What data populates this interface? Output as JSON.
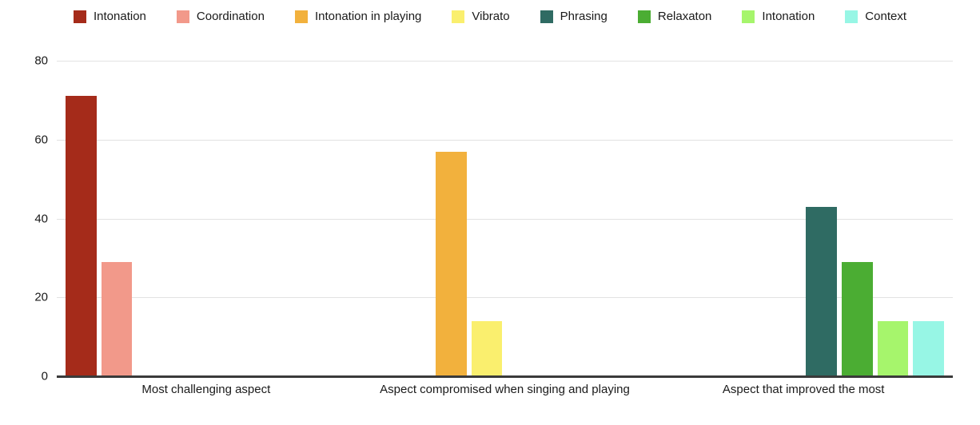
{
  "chart_data": {
    "type": "bar",
    "title": "",
    "xlabel": "",
    "ylabel": "",
    "categories": [
      "Most challenging aspect",
      "Aspect compromised when singing and playing",
      "Aspect that improved the most"
    ],
    "series": [
      {
        "name": "Intonation",
        "color": "#A52B1A",
        "values": [
          71,
          0,
          0
        ]
      },
      {
        "name": "Coordination",
        "color": "#F2998A",
        "values": [
          29,
          0,
          0
        ]
      },
      {
        "name": "Intonation in playing",
        "color": "#F2B13D",
        "values": [
          0,
          57,
          0
        ]
      },
      {
        "name": "Vibrato",
        "color": "#FAEF6E",
        "values": [
          0,
          14,
          0
        ]
      },
      {
        "name": "Phrasing",
        "color": "#2F6B63",
        "values": [
          0,
          0,
          43
        ]
      },
      {
        "name": "Relaxaton",
        "color": "#4BAD33",
        "values": [
          0,
          0,
          29
        ]
      },
      {
        "name": "Intonation",
        "color": "#A6F56C",
        "values": [
          0,
          0,
          14
        ]
      },
      {
        "name": "Context",
        "color": "#97F6E5",
        "values": [
          0,
          0,
          14
        ]
      }
    ],
    "ylim": [
      0,
      80
    ],
    "yticks": [
      0,
      20,
      40,
      60,
      80
    ],
    "grid": true,
    "legend_position": "top",
    "colors": {
      "gridline": "#e2e2e2",
      "axis_line": "#3a3a3a",
      "text": "#1a1a1a",
      "background": "#ffffff"
    }
  }
}
